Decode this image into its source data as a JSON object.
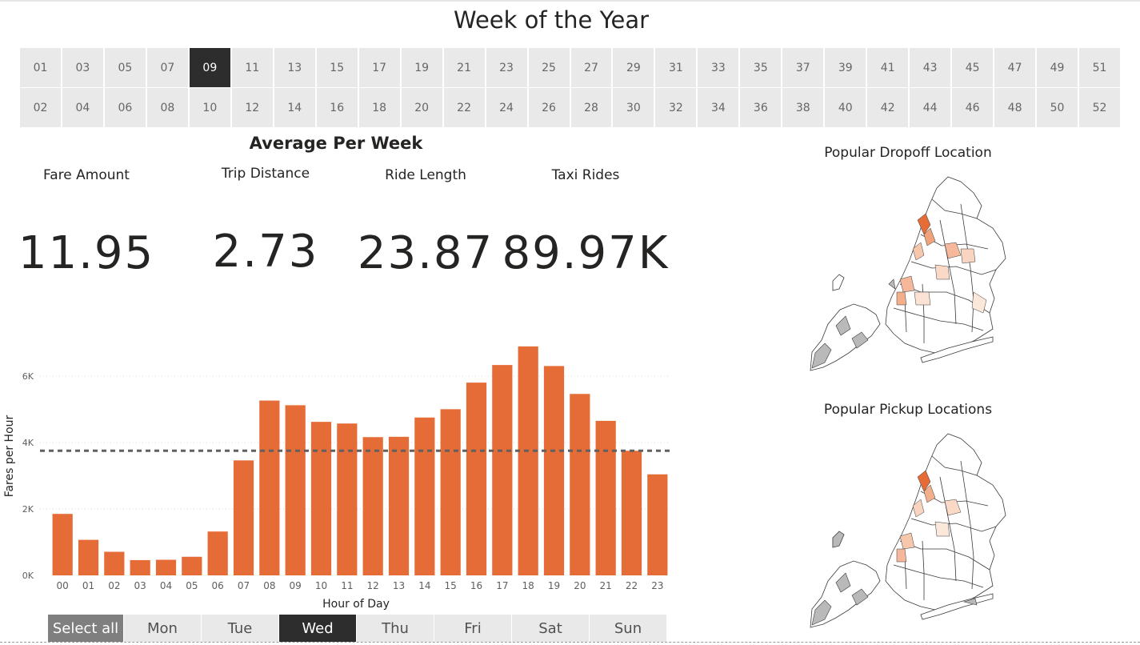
{
  "header": {
    "title": "Week of the Year"
  },
  "week_slicer": {
    "row1": [
      "01",
      "03",
      "05",
      "07",
      "09",
      "11",
      "13",
      "15",
      "17",
      "19",
      "21",
      "23",
      "25",
      "27",
      "29",
      "31",
      "33",
      "35",
      "37",
      "39",
      "41",
      "43",
      "45",
      "47",
      "49",
      "51"
    ],
    "row2": [
      "02",
      "04",
      "06",
      "08",
      "10",
      "12",
      "14",
      "16",
      "18",
      "20",
      "22",
      "24",
      "26",
      "28",
      "30",
      "32",
      "34",
      "36",
      "38",
      "40",
      "42",
      "44",
      "46",
      "48",
      "50",
      "52"
    ],
    "selected": "09"
  },
  "kpis": {
    "title": "Average Per Week",
    "items": [
      {
        "label": "Fare Amount",
        "value": "11.95"
      },
      {
        "label": "Trip Distance",
        "value": "2.73"
      },
      {
        "label": "Ride Length",
        "value": "23.87"
      },
      {
        "label": "Taxi Rides",
        "value": "89.97K"
      }
    ]
  },
  "maps": {
    "dropoff_title": "Popular Dropoff Location",
    "pickup_title": "Popular Pickup Locations"
  },
  "day_slicer": {
    "items": [
      "Select all",
      "Mon",
      "Tue",
      "Wed",
      "Thu",
      "Fri",
      "Sat",
      "Sun"
    ],
    "selected": "Wed"
  },
  "colors": {
    "bar": "#E66C37",
    "selected_button": "#2D2D2D",
    "button_bg": "#E9E9E9",
    "select_all_bg": "#7F7F7F",
    "average_line": "#606060"
  },
  "chart_data": {
    "type": "bar",
    "xlabel": "Hour of Day",
    "ylabel": "Fares per Hour",
    "categories": [
      "00",
      "01",
      "02",
      "03",
      "04",
      "05",
      "06",
      "07",
      "08",
      "09",
      "10",
      "11",
      "12",
      "13",
      "14",
      "15",
      "16",
      "17",
      "18",
      "19",
      "20",
      "21",
      "22",
      "23"
    ],
    "values": [
      1850,
      1070,
      710,
      460,
      470,
      560,
      1320,
      3460,
      5260,
      5120,
      4620,
      4570,
      4160,
      4170,
      4750,
      5000,
      5800,
      6330,
      6890,
      6300,
      5460,
      4650,
      3750,
      3040
    ],
    "y_ticks": [
      {
        "value": 0,
        "label": "0K"
      },
      {
        "value": 2000,
        "label": "2K"
      },
      {
        "value": 4000,
        "label": "4K"
      },
      {
        "value": 6000,
        "label": "6K"
      }
    ],
    "ylim": [
      0,
      7200
    ],
    "average_line": 3750,
    "grid": true
  }
}
